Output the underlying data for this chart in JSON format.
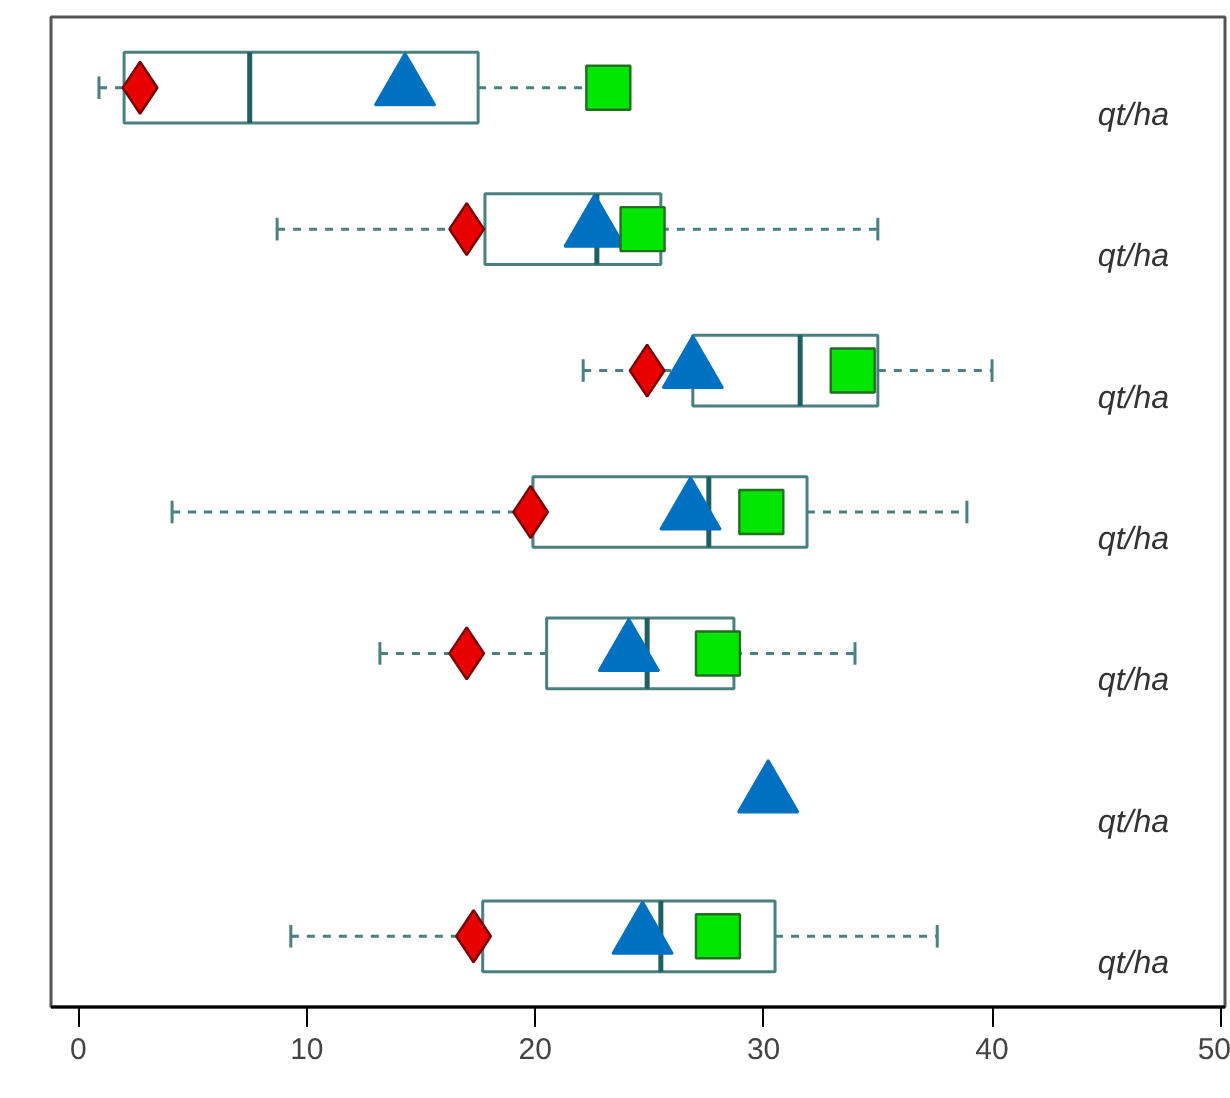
{
  "chart_data": {
    "type": "box",
    "orientation": "horizontal",
    "categories": [
      "qt/ha",
      "qt/ha",
      "qt/ha",
      "qt/ha",
      "qt/ha",
      "qt/ha",
      "qt/ha"
    ],
    "boxes": [
      {
        "low": 0.9,
        "q1": 2.0,
        "median": 7.5,
        "q3": 17.5,
        "high": 23.0
      },
      {
        "low": 8.7,
        "q1": 17.8,
        "median": 22.7,
        "q3": 25.5,
        "high": 35.0
      },
      {
        "low": 22.1,
        "q1": 26.9,
        "median": 31.6,
        "q3": 35.0,
        "high": 40.0
      },
      {
        "low": 4.1,
        "q1": 19.9,
        "median": 27.6,
        "q3": 31.9,
        "high": 38.9
      },
      {
        "low": 13.2,
        "q1": 20.5,
        "median": 24.9,
        "q3": 28.7,
        "high": 34.0
      },
      null,
      {
        "low": 9.3,
        "q1": 17.7,
        "median": 25.5,
        "q3": 30.5,
        "high": 37.6
      }
    ],
    "color": "#4a8080",
    "series": [
      {
        "type": "scatter",
        "marker": "diamond",
        "color": "#e60000",
        "values": [
          2.7,
          17.0,
          24.9,
          19.8,
          17.0,
          null,
          17.3
        ]
      },
      {
        "type": "scatter",
        "marker": "triangle",
        "color": "#0070c0",
        "values": [
          14.3,
          22.6,
          26.9,
          26.8,
          24.1,
          30.2,
          24.7
        ]
      },
      {
        "type": "scatter",
        "marker": "square",
        "color": "#00e600",
        "values": [
          23.2,
          24.7,
          33.9,
          29.9,
          28.0,
          null,
          28.0
        ]
      }
    ],
    "xlim": [
      -1.2,
      50.2
    ],
    "xticks": [
      0,
      10,
      20,
      30,
      40,
      50
    ],
    "grid": false
  }
}
